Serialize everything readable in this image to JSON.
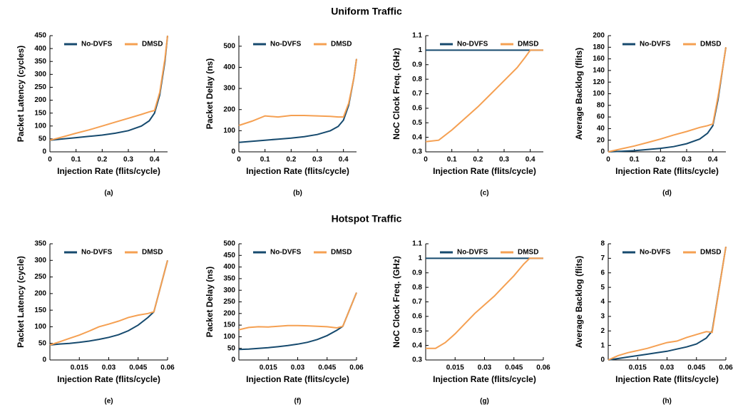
{
  "sections": [
    "Uniform Traffic",
    "Hotspot Traffic"
  ],
  "chart_data": [
    {
      "type": "line",
      "caption": "(a)",
      "ylabel": "Packet Latency (cycles)",
      "xlabel": "Injection Rate (flits/cycle)",
      "x": [
        0,
        0.05,
        0.1,
        0.15,
        0.2,
        0.25,
        0.3,
        0.35,
        0.38,
        0.4,
        0.42,
        0.44,
        0.45
      ],
      "xlim": [
        0,
        0.45
      ],
      "xticks": [
        0,
        0.1,
        0.2,
        0.3,
        0.4
      ],
      "ylim": [
        0,
        450
      ],
      "yticks": [
        0,
        50,
        100,
        150,
        200,
        250,
        300,
        350,
        400,
        450
      ],
      "series": [
        {
          "name": "No-DVFS",
          "color": "#164a6e",
          "values": [
            45,
            50,
            55,
            60,
            65,
            72,
            82,
            100,
            120,
            150,
            220,
            350,
            450
          ]
        },
        {
          "name": "DMSD",
          "color": "#f5a052",
          "values": [
            45,
            58,
            72,
            85,
            100,
            115,
            130,
            145,
            155,
            160,
            230,
            360,
            450
          ]
        }
      ]
    },
    {
      "type": "line",
      "caption": "(b)",
      "ylabel": "Packet Delay (ns)",
      "xlabel": "Injection Rate (flits/cycle)",
      "x": [
        0,
        0.05,
        0.1,
        0.15,
        0.2,
        0.25,
        0.3,
        0.35,
        0.38,
        0.4,
        0.42,
        0.44,
        0.45
      ],
      "xlim": [
        0,
        0.45
      ],
      "xticks": [
        0,
        0.1,
        0.2,
        0.3,
        0.4
      ],
      "ylim": [
        0,
        550
      ],
      "yticks": [
        0,
        100,
        200,
        300,
        400,
        500
      ],
      "series": [
        {
          "name": "No-DVFS",
          "color": "#164a6e",
          "values": [
            45,
            50,
            55,
            60,
            65,
            72,
            82,
            100,
            120,
            150,
            220,
            350,
            440
          ]
        },
        {
          "name": "DMSD",
          "color": "#f5a052",
          "values": [
            125,
            145,
            170,
            165,
            172,
            172,
            170,
            168,
            165,
            165,
            230,
            350,
            440
          ]
        }
      ]
    },
    {
      "type": "line",
      "caption": "(c)",
      "ylabel": "NoC Clock Freq. (GHz)",
      "xlabel": "Injection Rate (flits/cycle)",
      "x": [
        0,
        0.05,
        0.1,
        0.15,
        0.2,
        0.25,
        0.3,
        0.35,
        0.38,
        0.4,
        0.42,
        0.44,
        0.45
      ],
      "xlim": [
        0,
        0.45
      ],
      "xticks": [
        0,
        0.1,
        0.2,
        0.3,
        0.4
      ],
      "ylim": [
        0.3,
        1.1
      ],
      "yticks": [
        0.3,
        0.4,
        0.5,
        0.6,
        0.7,
        0.8,
        0.9,
        1,
        1.1
      ],
      "series": [
        {
          "name": "No-DVFS",
          "color": "#164a6e",
          "values": [
            1,
            1,
            1,
            1,
            1,
            1,
            1,
            1,
            1,
            1,
            1,
            1,
            1
          ]
        },
        {
          "name": "DMSD",
          "color": "#f5a052",
          "values": [
            0.37,
            0.38,
            0.45,
            0.53,
            0.61,
            0.7,
            0.79,
            0.88,
            0.95,
            1,
            1,
            1,
            1
          ]
        }
      ]
    },
    {
      "type": "line",
      "caption": "(d)",
      "ylabel": "Average Backlog (flits)",
      "xlabel": "Injection Rate (flits/cycle)",
      "x": [
        0,
        0.05,
        0.1,
        0.15,
        0.2,
        0.25,
        0.3,
        0.35,
        0.38,
        0.4,
        0.42,
        0.44,
        0.45
      ],
      "xlim": [
        0,
        0.45
      ],
      "xticks": [
        0,
        0.1,
        0.2,
        0.3,
        0.4
      ],
      "ylim": [
        0,
        200
      ],
      "yticks": [
        0,
        20,
        40,
        60,
        80,
        100,
        120,
        140,
        160,
        180,
        200
      ],
      "series": [
        {
          "name": "No-DVFS",
          "color": "#164a6e",
          "values": [
            0,
            1,
            2,
            4,
            6,
            9,
            14,
            22,
            32,
            45,
            90,
            150,
            180
          ]
        },
        {
          "name": "DMSD",
          "color": "#f5a052",
          "values": [
            0,
            5,
            10,
            16,
            22,
            29,
            35,
            42,
            45,
            48,
            95,
            150,
            180
          ]
        }
      ]
    },
    {
      "type": "line",
      "caption": "(e)",
      "ylabel": "Packet Latency (cycle)",
      "xlabel": "Injection Rate (flits/cycle)",
      "x": [
        0,
        0.005,
        0.01,
        0.015,
        0.02,
        0.025,
        0.03,
        0.035,
        0.04,
        0.045,
        0.05,
        0.053,
        0.06
      ],
      "xlim": [
        0,
        0.06
      ],
      "xticks": [
        0.015,
        0.03,
        0.045,
        0.06
      ],
      "ylim": [
        0,
        350
      ],
      "yticks": [
        0,
        50,
        100,
        150,
        200,
        250,
        300,
        350
      ],
      "series": [
        {
          "name": "No-DVFS",
          "color": "#164a6e",
          "values": [
            45,
            48,
            50,
            53,
            57,
            62,
            68,
            76,
            88,
            105,
            128,
            145,
            300
          ]
        },
        {
          "name": "DMSD",
          "color": "#f5a052",
          "values": [
            45,
            55,
            65,
            75,
            87,
            100,
            108,
            117,
            128,
            135,
            140,
            145,
            300
          ]
        }
      ]
    },
    {
      "type": "line",
      "caption": "(f)",
      "ylabel": "Packet Delay (ns)",
      "xlabel": "Injection Rate (flits/cycle)",
      "x": [
        0,
        0.005,
        0.01,
        0.015,
        0.02,
        0.025,
        0.03,
        0.035,
        0.04,
        0.045,
        0.05,
        0.053,
        0.06
      ],
      "xlim": [
        0,
        0.06
      ],
      "xticks": [
        0.015,
        0.03,
        0.045,
        0.06
      ],
      "ylim": [
        0,
        500
      ],
      "yticks": [
        0,
        50,
        100,
        150,
        200,
        250,
        300,
        350,
        400,
        450,
        500
      ],
      "series": [
        {
          "name": "No-DVFS",
          "color": "#164a6e",
          "values": [
            45,
            47,
            50,
            53,
            57,
            62,
            68,
            76,
            88,
            105,
            128,
            145,
            290
          ]
        },
        {
          "name": "DMSD",
          "color": "#f5a052",
          "values": [
            130,
            140,
            143,
            142,
            145,
            148,
            148,
            147,
            145,
            143,
            138,
            145,
            290
          ]
        }
      ]
    },
    {
      "type": "line",
      "caption": "(g)",
      "ylabel": "NoC Clock Freq. (GHz)",
      "xlabel": "Injection Rate (flits/cycle)",
      "x": [
        0,
        0.005,
        0.01,
        0.015,
        0.02,
        0.025,
        0.03,
        0.035,
        0.04,
        0.045,
        0.05,
        0.053,
        0.06
      ],
      "xlim": [
        0,
        0.06
      ],
      "xticks": [
        0.015,
        0.03,
        0.045,
        0.06
      ],
      "ylim": [
        0.3,
        1.1
      ],
      "yticks": [
        0.3,
        0.4,
        0.5,
        0.6,
        0.7,
        0.8,
        0.9,
        1,
        1.1
      ],
      "series": [
        {
          "name": "No-DVFS",
          "color": "#164a6e",
          "values": [
            1,
            1,
            1,
            1,
            1,
            1,
            1,
            1,
            1,
            1,
            1,
            1,
            1
          ]
        },
        {
          "name": "DMSD",
          "color": "#f5a052",
          "values": [
            0.38,
            0.38,
            0.42,
            0.48,
            0.55,
            0.62,
            0.68,
            0.74,
            0.81,
            0.88,
            0.96,
            1,
            1
          ]
        }
      ]
    },
    {
      "type": "line",
      "caption": "(h)",
      "ylabel": "Average Backlog (flits)",
      "xlabel": "Injection Rate (flits/cycle)",
      "x": [
        0,
        0.005,
        0.01,
        0.015,
        0.02,
        0.025,
        0.03,
        0.035,
        0.04,
        0.045,
        0.05,
        0.053,
        0.06
      ],
      "xlim": [
        0,
        0.06
      ],
      "xticks": [
        0.015,
        0.03,
        0.045,
        0.06
      ],
      "ylim": [
        0,
        8
      ],
      "yticks": [
        0,
        1,
        2,
        3,
        4,
        5,
        6,
        7,
        8
      ],
      "series": [
        {
          "name": "No-DVFS",
          "color": "#164a6e",
          "values": [
            0,
            0.1,
            0.2,
            0.3,
            0.4,
            0.5,
            0.6,
            0.75,
            0.9,
            1.1,
            1.5,
            2,
            7.8
          ]
        },
        {
          "name": "DMSD",
          "color": "#f5a052",
          "values": [
            0,
            0.3,
            0.5,
            0.65,
            0.8,
            1,
            1.2,
            1.3,
            1.55,
            1.75,
            1.95,
            1.9,
            7.8
          ]
        }
      ]
    }
  ]
}
